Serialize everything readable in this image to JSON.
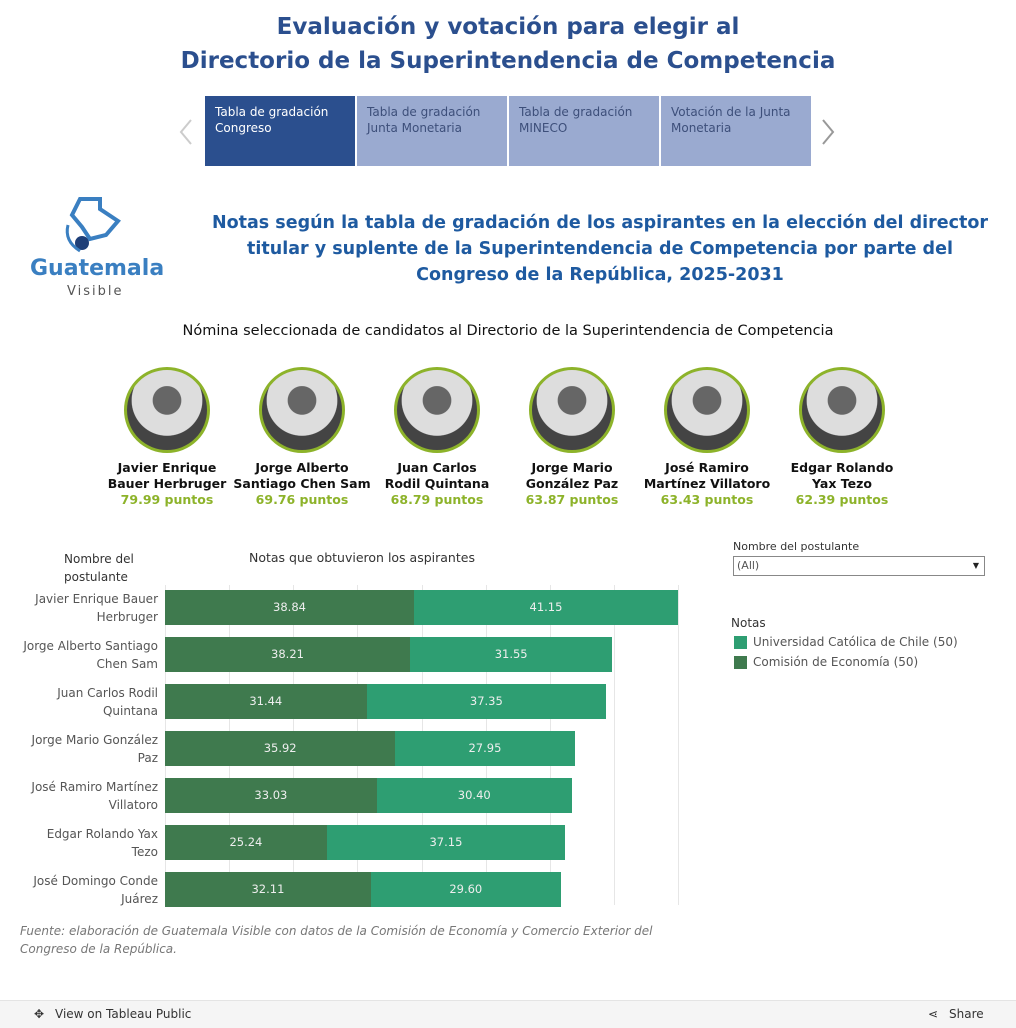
{
  "header": {
    "title_lines": [
      "Evaluación y votación para elegir al",
      "Directorio de la Superintendencia de Competencia"
    ],
    "tabs": [
      [
        "Tabla de gradación",
        "Congreso"
      ],
      [
        "Tabla de gradación",
        "Junta Monetaria"
      ],
      [
        "Tabla de gradación",
        "MINECO"
      ],
      [
        "Votación de la Junta",
        "Monetaria"
      ]
    ]
  },
  "logo": {
    "name": "Guatemala",
    "sub": "Visible"
  },
  "subtitle": "Notas según la tabla de gradación de los aspirantes en la elección del director titular y suplente de la Superintendencia de Competencia por parte del Congreso de la República, 2025-2031",
  "nomination": {
    "heading": "Nómina seleccionada de candidatos al Directorio de la Superintendencia de Competencia",
    "candidates": [
      {
        "name_lines": [
          "Javier Enrique",
          "Bauer Herbruger"
        ],
        "points": "79.99 puntos"
      },
      {
        "name_lines": [
          "Jorge Alberto",
          "Santiago Chen Sam"
        ],
        "points": "69.76 puntos"
      },
      {
        "name_lines": [
          "Juan Carlos",
          "Rodil Quintana"
        ],
        "points": "68.79 puntos"
      },
      {
        "name_lines": [
          "Jorge Mario",
          "González Paz"
        ],
        "points": "63.87 puntos"
      },
      {
        "name_lines": [
          "José Ramiro",
          "Martínez Villatoro"
        ],
        "points": "63.43 puntos"
      },
      {
        "name_lines": [
          "Edgar Rolando",
          "Yax Tezo"
        ],
        "points": "62.39 puntos"
      }
    ]
  },
  "chart_data": {
    "type": "stacked-bar-horizontal",
    "row_header": "Nombre del postulante",
    "title": "Notas que obtuvieron los aspirantes",
    "categories": [
      "Javier Enrique Bauer Herbruger",
      "Jorge Alberto Santiago Chen Sam",
      "Juan Carlos Rodil Quintana",
      "Jorge Mario González Paz",
      "José Ramiro Martínez Villatoro",
      "Edgar Rolando Yax Tezo",
      "José Domingo Conde Juárez"
    ],
    "series": [
      {
        "name": "Comisión de Economía (50)",
        "color": "#3f7a4e",
        "values": [
          38.84,
          38.21,
          31.44,
          35.92,
          33.03,
          25.24,
          32.11
        ],
        "value_labels": [
          "38.84",
          "38.21",
          "31.44",
          "35.92",
          "33.03",
          "25.24",
          "32.11"
        ]
      },
      {
        "name": "Universidad Católica de Chile (50)",
        "color": "#2e9e72",
        "values": [
          41.15,
          31.55,
          37.35,
          27.95,
          30.4,
          37.15,
          29.6
        ],
        "value_labels": [
          "41.15",
          "31.55",
          "37.35",
          "27.95",
          "30.40",
          "37.15",
          "29.60"
        ]
      }
    ],
    "xlim": [
      0,
      80
    ],
    "xticks": [
      0,
      10,
      20,
      30,
      40,
      50,
      60,
      70,
      80
    ],
    "grid": true,
    "legend_title": "Notas",
    "filter_label": "Nombre del postulante",
    "filter_value": "(All)"
  },
  "source": "Fuente: elaboración de Guatemala Visible con datos de la Comisión de Economía y Comercio Exterior del Congreso de la República.",
  "footer": {
    "left": "View on Tableau Public",
    "right": "Share"
  }
}
